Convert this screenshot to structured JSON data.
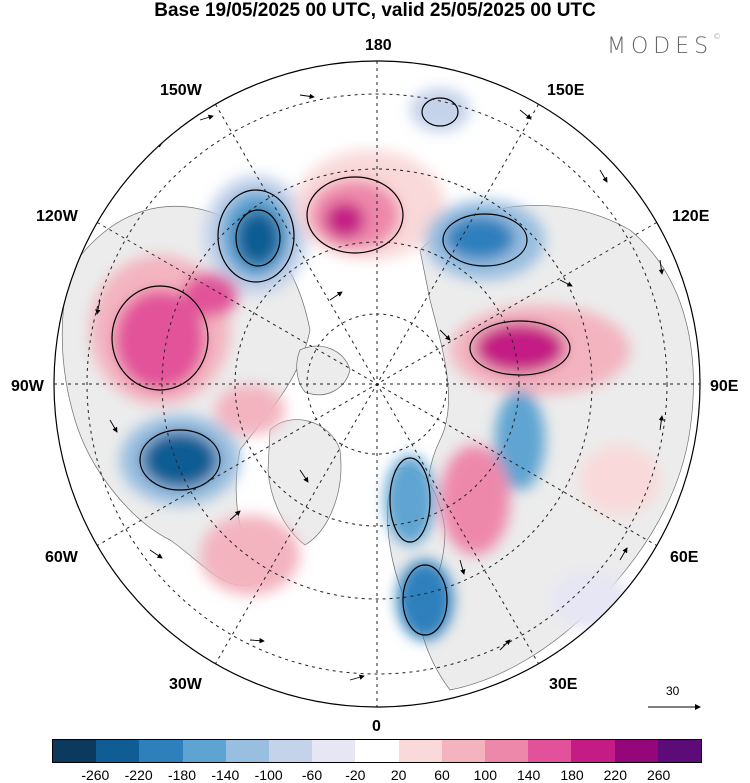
{
  "title": "Base 19/05/2025 00 UTC, valid 25/05/2025 00 UTC",
  "brand": "MODES",
  "brand_mark": "©",
  "longitude_labels": {
    "top": "180",
    "lon150w": "150W",
    "lon150e": "150E",
    "lon120w": "120W",
    "lon120e": "120E",
    "lon90w": "90W",
    "lon90e": "90E",
    "lon60w": "60W",
    "lon60e": "60E",
    "lon30w": "30W",
    "lon30e": "30E",
    "bottom": "0"
  },
  "reference_vector": "30",
  "colorbar": {
    "colors": [
      "#0b3a5e",
      "#0f5d94",
      "#2e80bd",
      "#5ea4d2",
      "#98bee0",
      "#c4d2ea",
      "#e6e6f4",
      "#ffffff",
      "#f9d9d9",
      "#f3b4c0",
      "#ee88ab",
      "#e2529a",
      "#c41c84",
      "#96067b",
      "#5d0b78"
    ],
    "ticks": [
      "-260",
      "-220",
      "-180",
      "-140",
      "-100",
      "-60",
      "-20",
      "20",
      "60",
      "100",
      "140",
      "180",
      "220",
      "260"
    ]
  },
  "colors": {
    "land": "#ececec",
    "coast": "#6e6e6e",
    "grid": "#222222"
  }
}
